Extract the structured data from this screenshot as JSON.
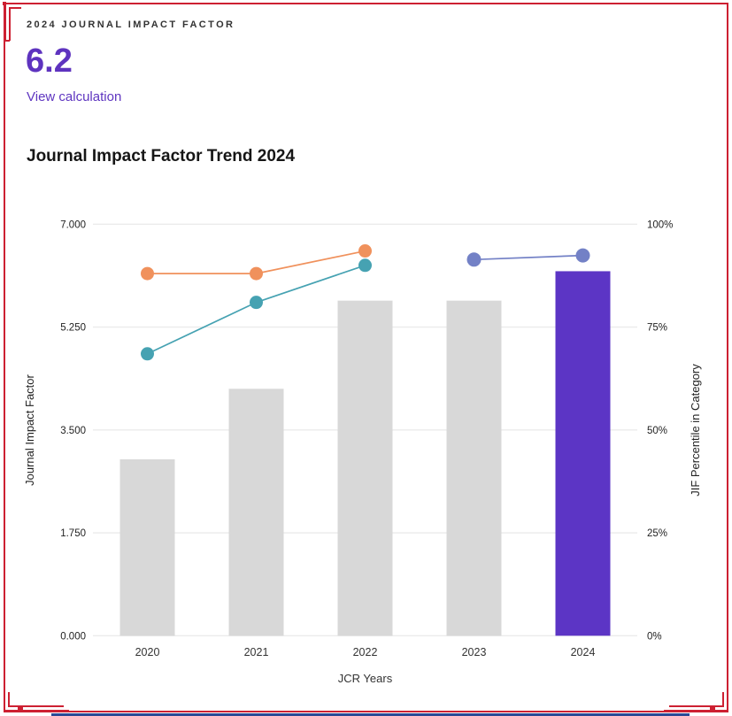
{
  "frame": {
    "border_color": "#cd2032",
    "bottom_bar_color": "#2a4a96"
  },
  "header": {
    "kicker": "2024 JOURNAL IMPACT FACTOR",
    "value": "6.2",
    "link_label": "View calculation",
    "accent_color": "#5e33bf"
  },
  "chart_data": {
    "type": "combo-bar-line",
    "title": "Journal Impact Factor Trend 2024",
    "categories": [
      "2020",
      "2021",
      "2022",
      "2023",
      "2024"
    ],
    "bars": {
      "name": "Journal Impact Factor",
      "values": [
        3.0,
        4.2,
        5.7,
        5.7,
        6.2
      ],
      "color": "#d8d8d8",
      "highlight_index": 4,
      "highlight_color": "#5c35c5"
    },
    "lines": [
      {
        "name": "percentile-line-orange",
        "color": "#f0915c",
        "start_index": 0,
        "values": [
          88,
          88,
          93.5
        ],
        "point_r": 7.5
      },
      {
        "name": "percentile-line-teal",
        "color": "#46a2b2",
        "start_index": 0,
        "values": [
          68.5,
          81,
          90
        ],
        "point_r": 7.5
      },
      {
        "name": "percentile-line-slate",
        "color": "#7381c6",
        "start_index": 3,
        "values": [
          91.4,
          92.4
        ],
        "point_r": 8
      }
    ],
    "left_axis": {
      "title": "Journal Impact Factor",
      "ticks": [
        "7.000",
        "5.250",
        "3.500",
        "1.750",
        "0.000"
      ],
      "min": 0,
      "max": 7
    },
    "right_axis": {
      "title": "JIF Percentile in Category",
      "ticks": [
        "100%",
        "75%",
        "50%",
        "25%",
        "0%"
      ],
      "min": 0,
      "max": 100
    },
    "x_axis": {
      "title": "JCR Years"
    },
    "grid": true,
    "legend": false,
    "gridline_color": "#ebebeb"
  }
}
